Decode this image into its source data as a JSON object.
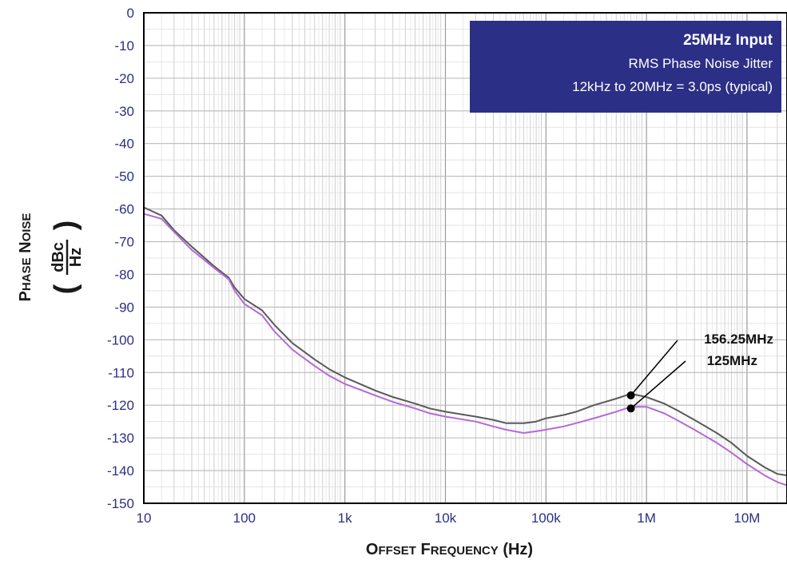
{
  "chart_data": {
    "type": "line",
    "title": "",
    "xlabel_parts": [
      {
        "big": "O",
        "small": "FFSET"
      },
      {
        "big": " F",
        "small": "REQUENCY"
      },
      {
        "big": " (Hz)",
        "small": ""
      }
    ],
    "xlabel": "Offset Frequency (Hz)",
    "ylabel": "Phase Noise",
    "ylabel_unit_num": "dBc",
    "ylabel_unit_den": "Hz",
    "x_scale": "log",
    "xlim": [
      10,
      25000000
    ],
    "ylim": [
      -150,
      0
    ],
    "x_ticks": [
      {
        "value": 10,
        "label": "10"
      },
      {
        "value": 100,
        "label": "100"
      },
      {
        "value": 1000,
        "label": "1k"
      },
      {
        "value": 10000,
        "label": "10k"
      },
      {
        "value": 100000,
        "label": "100k"
      },
      {
        "value": 1000000,
        "label": "1M"
      },
      {
        "value": 10000000,
        "label": "10M"
      }
    ],
    "y_ticks": [
      {
        "value": 0,
        "label": "0"
      },
      {
        "value": -10,
        "label": "-10"
      },
      {
        "value": -20,
        "label": "-20"
      },
      {
        "value": -30,
        "label": "-30"
      },
      {
        "value": -40,
        "label": "-40"
      },
      {
        "value": -50,
        "label": "-50"
      },
      {
        "value": -60,
        "label": "-60"
      },
      {
        "value": -70,
        "label": "-70"
      },
      {
        "value": -80,
        "label": "-80"
      },
      {
        "value": -90,
        "label": "-90"
      },
      {
        "value": -100,
        "label": "-100"
      },
      {
        "value": -110,
        "label": "-110"
      },
      {
        "value": -120,
        "label": "-120"
      },
      {
        "value": -130,
        "label": "-130"
      },
      {
        "value": -140,
        "label": "-140"
      },
      {
        "value": -150,
        "label": "-150"
      }
    ],
    "grid": true,
    "annotation_box": {
      "lines": [
        "25MHz Input",
        "RMS Phase Noise Jitter",
        "12kHz to 20MHz = 3.0ps (typical)"
      ],
      "placement": "top-right",
      "background": "#2b2f86"
    },
    "series": [
      {
        "name": "156.25MHz",
        "color": "#5a5a5a",
        "marker_x": 700000,
        "marker_y": -117,
        "x": [
          10,
          15,
          20,
          30,
          50,
          70,
          80,
          100,
          150,
          200,
          300,
          500,
          700,
          1000,
          2000,
          3000,
          5000,
          7000,
          10000,
          20000,
          30000,
          40000,
          60000,
          80000,
          100000,
          150000,
          200000,
          300000,
          500000,
          700000,
          1000000,
          1500000,
          2000000,
          3000000,
          5000000,
          7000000,
          10000000,
          15000000,
          20000000,
          25000000
        ],
        "values": [
          -59.5,
          -62,
          -66.5,
          -71.5,
          -77.5,
          -81,
          -84,
          -87.5,
          -91,
          -95.5,
          -101,
          -106,
          -109,
          -111.5,
          -115.5,
          -117.5,
          -119.5,
          -121,
          -122,
          -123.5,
          -124.5,
          -125.5,
          -125.5,
          -125,
          -124,
          -123,
          -122,
          -120,
          -118,
          -116.5,
          -117.5,
          -119.5,
          -121.5,
          -124.5,
          -128.5,
          -131.5,
          -135.5,
          -139,
          -141,
          -141.5
        ]
      },
      {
        "name": "125MHz",
        "color": "#b469d6",
        "marker_x": 700000,
        "marker_y": -121,
        "x": [
          10,
          15,
          20,
          30,
          50,
          70,
          80,
          100,
          150,
          200,
          300,
          500,
          700,
          1000,
          2000,
          3000,
          5000,
          7000,
          10000,
          20000,
          30000,
          40000,
          60000,
          80000,
          100000,
          150000,
          200000,
          300000,
          500000,
          700000,
          1000000,
          1500000,
          2000000,
          3000000,
          5000000,
          7000000,
          10000000,
          15000000,
          20000000,
          25000000
        ],
        "values": [
          -61.5,
          -63,
          -67,
          -72.5,
          -78,
          -81.5,
          -85,
          -89,
          -92.5,
          -97.5,
          -103,
          -108,
          -111,
          -113.5,
          -117,
          -119,
          -121,
          -122.5,
          -123.5,
          -125,
          -126.5,
          -127.5,
          -128.5,
          -128,
          -127.5,
          -126.5,
          -125.5,
          -124,
          -122,
          -120.5,
          -120.5,
          -122.5,
          -124.5,
          -127.5,
          -131.5,
          -134.5,
          -138,
          -141.5,
          -143.5,
          -144.5
        ]
      }
    ]
  }
}
